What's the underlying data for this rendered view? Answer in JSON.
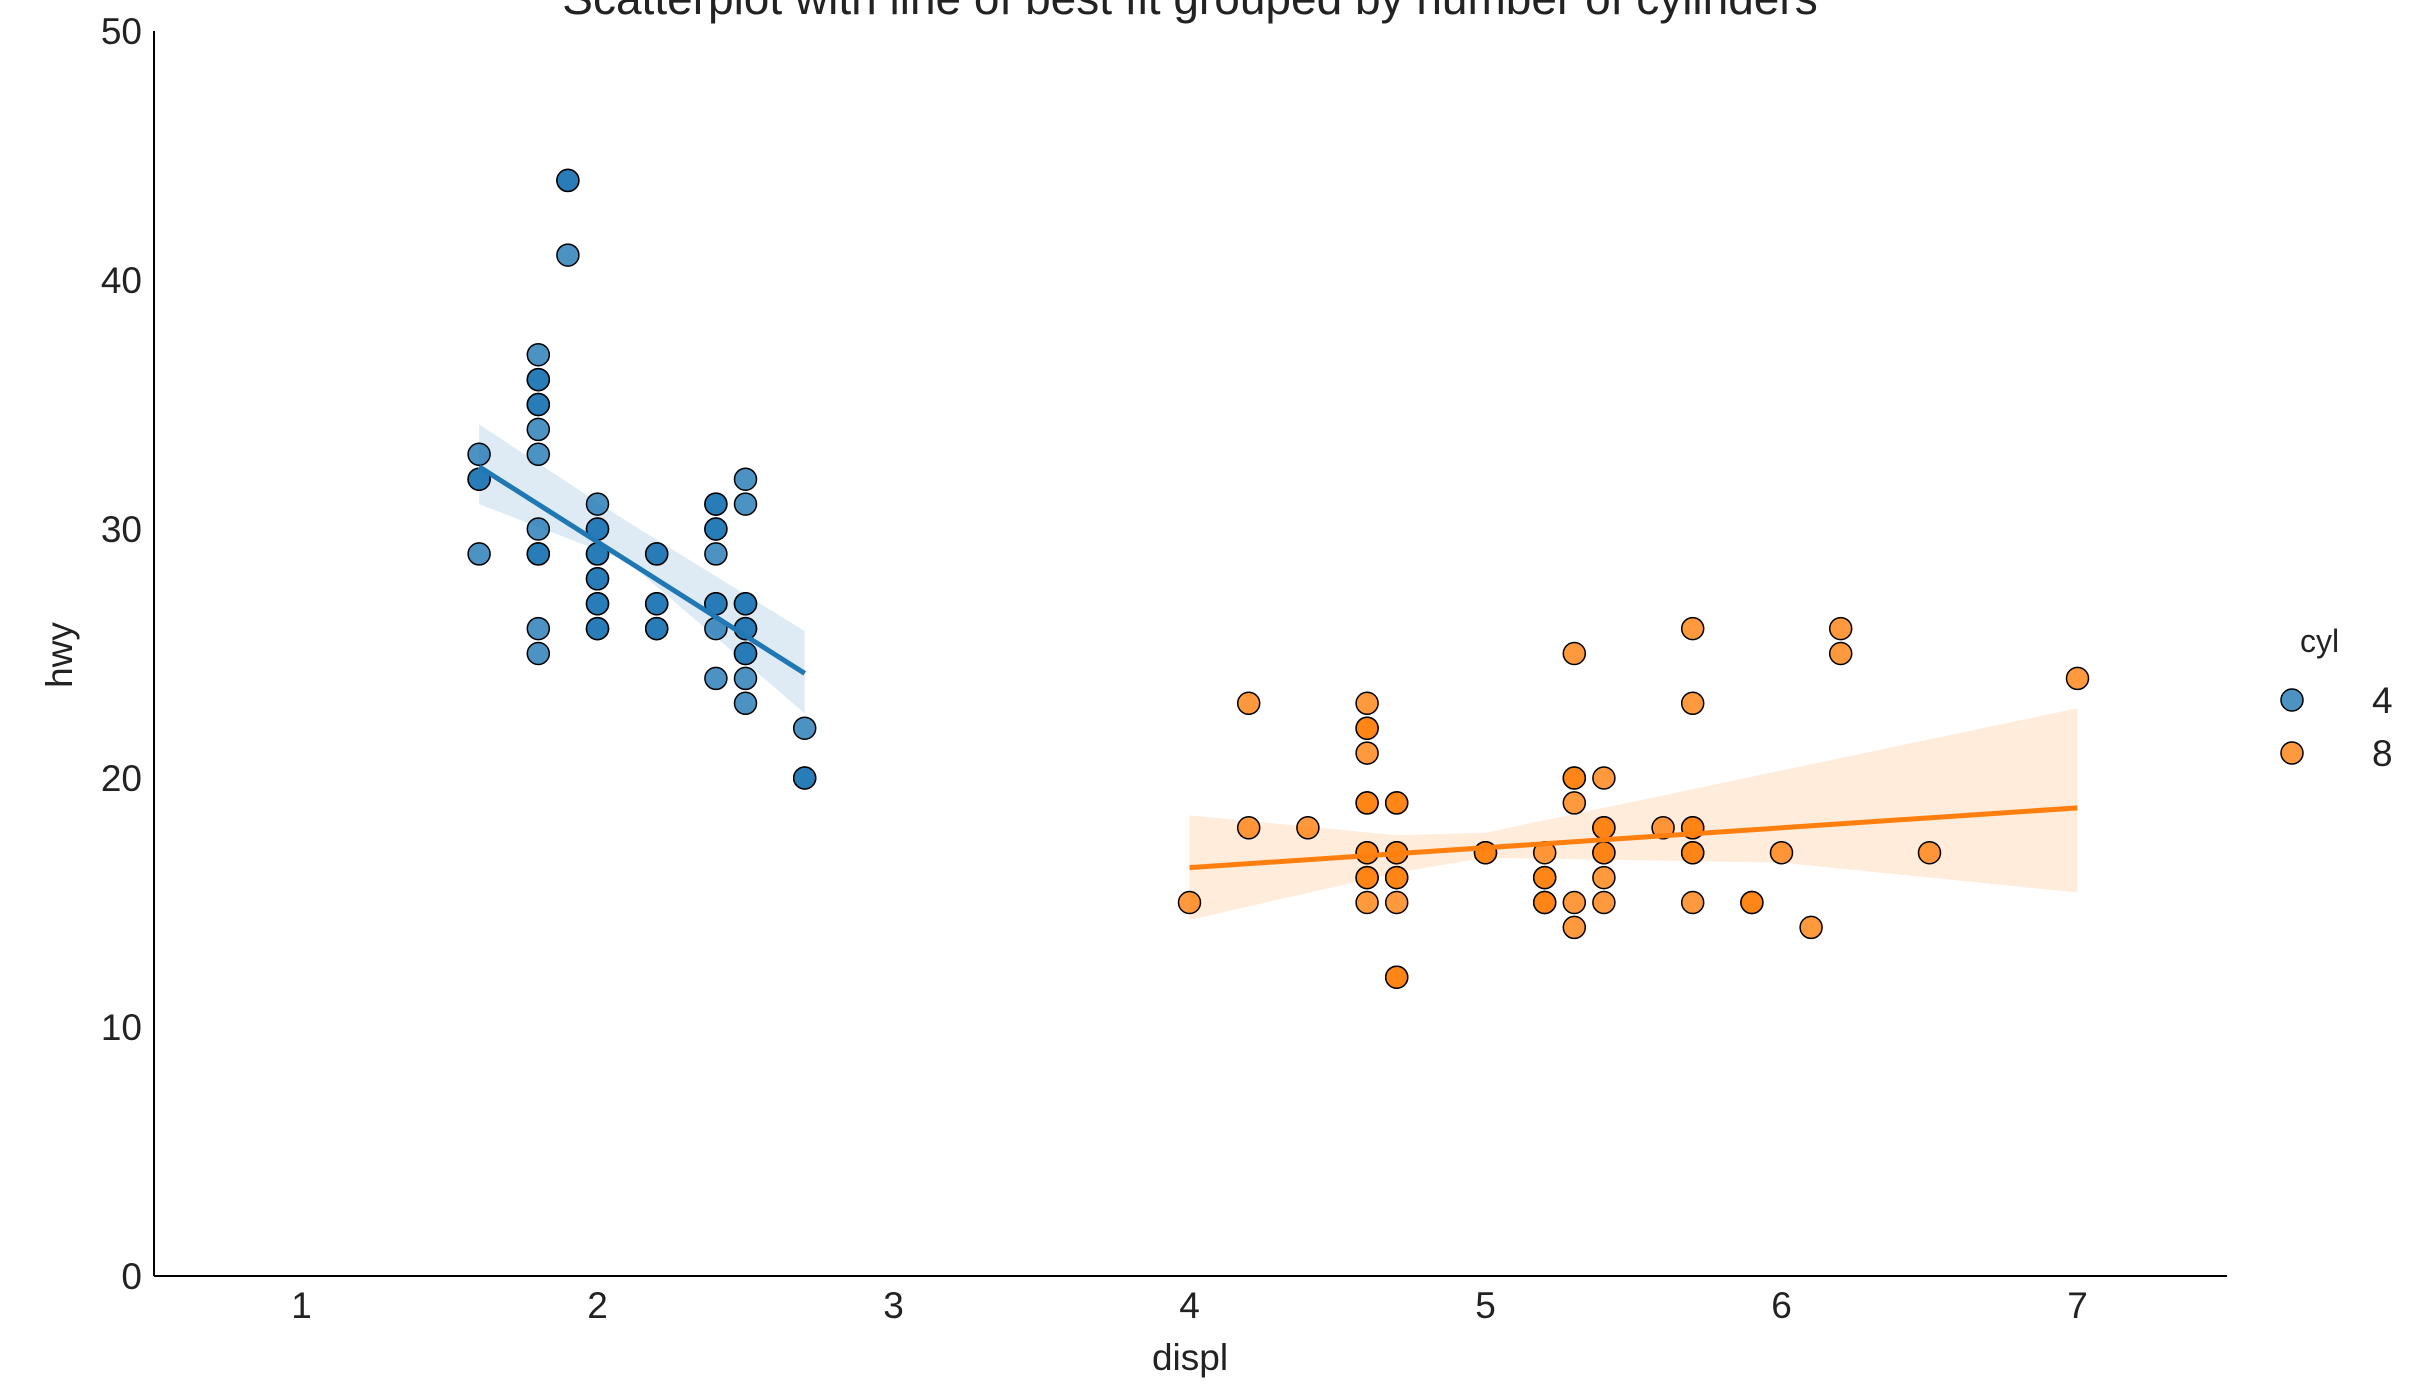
{
  "chart_data": {
    "type": "scatter",
    "title": "Scatterplot with line of best fit grouped by number of cylinders",
    "xlabel": "displ",
    "ylabel": "hwy",
    "xlim": [
      0.5,
      7.5
    ],
    "ylim": [
      0,
      50
    ],
    "xticks": [
      1,
      2,
      3,
      4,
      5,
      6,
      7
    ],
    "yticks": [
      0,
      10,
      20,
      30,
      40,
      50
    ],
    "grid": false,
    "legend": {
      "title": "cyl",
      "placement": "right",
      "entries": [
        "4",
        "8"
      ]
    },
    "series": [
      {
        "name": "4",
        "color": "#1f77b4",
        "points": [
          [
            1.6,
            33
          ],
          [
            1.6,
            32
          ],
          [
            1.6,
            32
          ],
          [
            1.6,
            29
          ],
          [
            1.8,
            37
          ],
          [
            1.8,
            36
          ],
          [
            1.8,
            36
          ],
          [
            1.8,
            35
          ],
          [
            1.8,
            35
          ],
          [
            1.8,
            34
          ],
          [
            1.8,
            33
          ],
          [
            1.8,
            30
          ],
          [
            1.8,
            29
          ],
          [
            1.8,
            29
          ],
          [
            1.8,
            26
          ],
          [
            1.8,
            25
          ],
          [
            1.9,
            44
          ],
          [
            1.9,
            44
          ],
          [
            1.9,
            41
          ],
          [
            2.0,
            31
          ],
          [
            2.0,
            30
          ],
          [
            2.0,
            30
          ],
          [
            2.0,
            29
          ],
          [
            2.0,
            29
          ],
          [
            2.0,
            28
          ],
          [
            2.0,
            28
          ],
          [
            2.0,
            27
          ],
          [
            2.0,
            27
          ],
          [
            2.0,
            26
          ],
          [
            2.0,
            26
          ],
          [
            2.2,
            29
          ],
          [
            2.2,
            29
          ],
          [
            2.2,
            27
          ],
          [
            2.2,
            27
          ],
          [
            2.2,
            26
          ],
          [
            2.2,
            26
          ],
          [
            2.4,
            31
          ],
          [
            2.4,
            31
          ],
          [
            2.4,
            30
          ],
          [
            2.4,
            30
          ],
          [
            2.4,
            29
          ],
          [
            2.4,
            27
          ],
          [
            2.4,
            27
          ],
          [
            2.4,
            26
          ],
          [
            2.4,
            24
          ],
          [
            2.5,
            32
          ],
          [
            2.5,
            31
          ],
          [
            2.5,
            27
          ],
          [
            2.5,
            27
          ],
          [
            2.5,
            26
          ],
          [
            2.5,
            26
          ],
          [
            2.5,
            25
          ],
          [
            2.5,
            25
          ],
          [
            2.5,
            24
          ],
          [
            2.5,
            23
          ],
          [
            2.7,
            22
          ],
          [
            2.7,
            20
          ],
          [
            2.7,
            20
          ]
        ],
        "fit": [
          [
            1.6,
            32.5
          ],
          [
            2.7,
            24.2
          ]
        ],
        "ci_upper": [
          [
            1.6,
            34.2
          ],
          [
            2.1,
            30.3
          ],
          [
            2.7,
            25.9
          ]
        ],
        "ci_lower": [
          [
            1.6,
            31.0
          ],
          [
            2.1,
            28.7
          ],
          [
            2.7,
            22.6
          ]
        ]
      },
      {
        "name": "8",
        "color": "#ff7f0e",
        "points": [
          [
            4.0,
            15
          ],
          [
            4.2,
            23
          ],
          [
            4.2,
            18
          ],
          [
            4.4,
            18
          ],
          [
            4.6,
            23
          ],
          [
            4.6,
            22
          ],
          [
            4.6,
            22
          ],
          [
            4.6,
            21
          ],
          [
            4.6,
            19
          ],
          [
            4.6,
            19
          ],
          [
            4.6,
            17
          ],
          [
            4.6,
            17
          ],
          [
            4.6,
            16
          ],
          [
            4.6,
            16
          ],
          [
            4.6,
            15
          ],
          [
            4.7,
            19
          ],
          [
            4.7,
            19
          ],
          [
            4.7,
            17
          ],
          [
            4.7,
            17
          ],
          [
            4.7,
            16
          ],
          [
            4.7,
            16
          ],
          [
            4.7,
            15
          ],
          [
            4.7,
            12
          ],
          [
            4.7,
            12
          ],
          [
            5.0,
            17
          ],
          [
            5.0,
            17
          ],
          [
            5.2,
            17
          ],
          [
            5.2,
            16
          ],
          [
            5.2,
            16
          ],
          [
            5.2,
            15
          ],
          [
            5.2,
            15
          ],
          [
            5.3,
            25
          ],
          [
            5.3,
            20
          ],
          [
            5.3,
            20
          ],
          [
            5.3,
            19
          ],
          [
            5.3,
            15
          ],
          [
            5.3,
            14
          ],
          [
            5.4,
            20
          ],
          [
            5.4,
            18
          ],
          [
            5.4,
            18
          ],
          [
            5.4,
            17
          ],
          [
            5.4,
            17
          ],
          [
            5.4,
            16
          ],
          [
            5.4,
            15
          ],
          [
            5.6,
            18
          ],
          [
            5.7,
            26
          ],
          [
            5.7,
            23
          ],
          [
            5.7,
            18
          ],
          [
            5.7,
            18
          ],
          [
            5.7,
            17
          ],
          [
            5.7,
            17
          ],
          [
            5.7,
            15
          ],
          [
            5.9,
            15
          ],
          [
            5.9,
            15
          ],
          [
            6.0,
            17
          ],
          [
            6.1,
            14
          ],
          [
            6.2,
            26
          ],
          [
            6.2,
            25
          ],
          [
            6.5,
            17
          ],
          [
            7.0,
            24
          ]
        ],
        "fit": [
          [
            4.0,
            16.4
          ],
          [
            7.0,
            18.8
          ]
        ],
        "ci_upper": [
          [
            4.0,
            18.5
          ],
          [
            4.7,
            17.7
          ],
          [
            5.0,
            17.8
          ],
          [
            6.0,
            20.3
          ],
          [
            7.0,
            22.8
          ]
        ],
        "ci_lower": [
          [
            4.0,
            14.3
          ],
          [
            4.7,
            16.2
          ],
          [
            5.0,
            16.8
          ],
          [
            6.0,
            16.6
          ],
          [
            7.0,
            15.4
          ]
        ]
      }
    ]
  }
}
